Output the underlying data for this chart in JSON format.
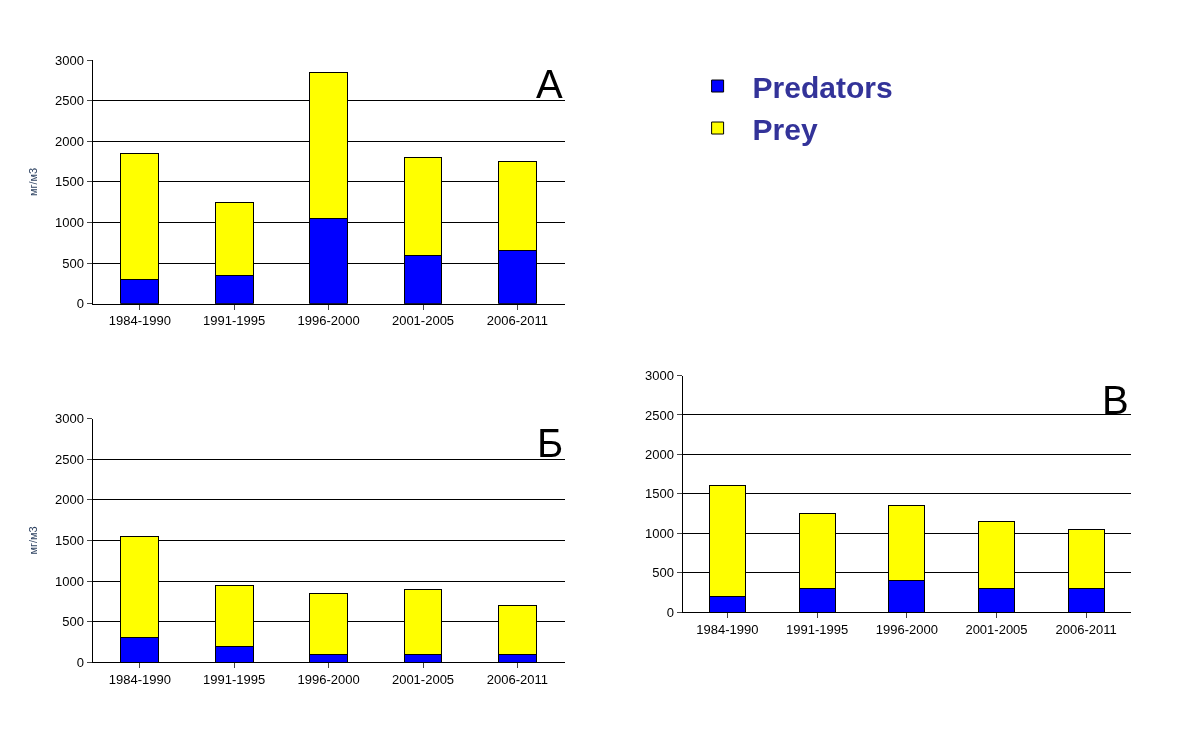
{
  "chart_data": [
    {
      "type": "bar",
      "title": "А",
      "ylabel": "мг/м3",
      "stacked": true,
      "legend": "right",
      "grid": "y",
      "ylim": [
        0,
        3000
      ],
      "yticks": [
        0,
        500,
        1000,
        1500,
        2000,
        2500,
        3000
      ],
      "categories": [
        "1984-1990",
        "1991-1995",
        "1996-2000",
        "2001-2005",
        "2006-2011"
      ],
      "series": [
        {
          "name": "Predators",
          "color": "#0000ff",
          "values": [
            300,
            350,
            1050,
            600,
            650
          ]
        },
        {
          "name": "Prey",
          "color": "#ffff00",
          "values": [
            1550,
            900,
            1800,
            1200,
            1100
          ]
        }
      ]
    },
    {
      "type": "bar",
      "title": "Б",
      "ylabel": "мг/м3",
      "stacked": true,
      "grid": "y",
      "ylim": [
        0,
        3000
      ],
      "yticks": [
        0,
        500,
        1000,
        1500,
        2000,
        2500,
        3000
      ],
      "categories": [
        "1984-1990",
        "1991-1995",
        "1996-2000",
        "2001-2005",
        "2006-2011"
      ],
      "series": [
        {
          "color": "#0000ff",
          "values": [
            300,
            200,
            100,
            100,
            100
          ]
        },
        {
          "color": "#ffff00",
          "values": [
            1250,
            750,
            750,
            800,
            600
          ]
        }
      ]
    },
    {
      "type": "bar",
      "title": "В",
      "stacked": true,
      "grid": "y",
      "ylim": [
        0,
        3000
      ],
      "yticks": [
        0,
        500,
        1000,
        1500,
        2000,
        2500,
        3000
      ],
      "categories": [
        "1984-1990",
        "1991-1995",
        "1996-2000",
        "2001-2005",
        "2006-2011"
      ],
      "series": [
        {
          "color": "#0000ff",
          "values": [
            200,
            300,
            400,
            300,
            300
          ]
        },
        {
          "color": "#ffff00",
          "values": [
            1400,
            950,
            950,
            850,
            750
          ]
        }
      ]
    }
  ]
}
